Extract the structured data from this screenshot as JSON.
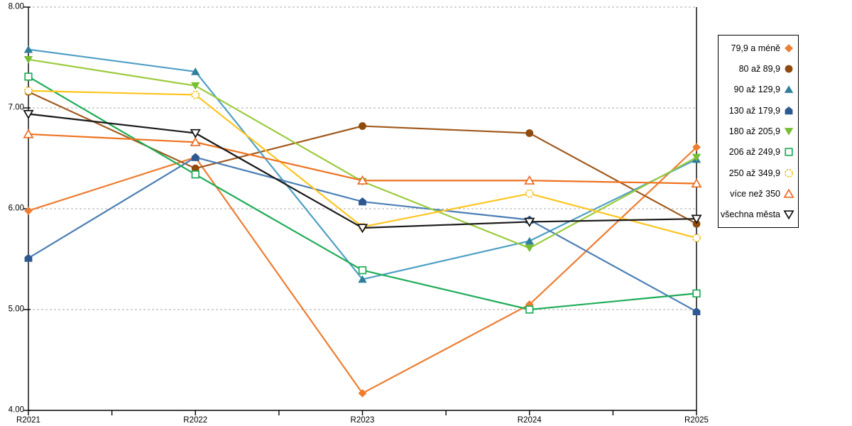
{
  "colors": {
    "background": "#FFFFFF",
    "axis": "#000000",
    "gridline": "#ABABAB",
    "legend_border": "#000000",
    "text": "#000000"
  },
  "chart_data": {
    "type": "line",
    "title": "",
    "xlabel": "",
    "ylabel": "",
    "x_categories": [
      "R2021",
      "R2022",
      "R2023",
      "R2024",
      "R2025"
    ],
    "y_axis": {
      "min": 4.0,
      "max": 8.0,
      "tick_step": 1.0,
      "tick_labels": [
        "8.00",
        "7.00",
        "6.00",
        "5.00",
        "4.00"
      ]
    },
    "grid": "horizontal-dashed",
    "legend_position": "right-box",
    "series": [
      {
        "label": "79,9 a méně",
        "marker": "diamond-filled",
        "marker_color": "#ED7D31",
        "line_color": "#ED7D31",
        "values": [
          5.98,
          6.51,
          4.17,
          5.05,
          6.61
        ]
      },
      {
        "label": "80 až 89,9",
        "marker": "circle-filled",
        "marker_color": "#8F4A0D",
        "line_color": "#A05A1E",
        "values": [
          7.16,
          6.4,
          6.82,
          6.75,
          5.85
        ]
      },
      {
        "label": "90 až 129,9",
        "marker": "triangle-filled",
        "marker_color": "#2E7F9B",
        "line_color": "#4E9FC4",
        "values": [
          7.58,
          7.36,
          5.3,
          5.68,
          6.49
        ]
      },
      {
        "label": "130 až 179,9",
        "marker": "pentagon-filled",
        "marker_color": "#2D5990",
        "line_color": "#4C7FB5",
        "values": [
          5.51,
          6.51,
          6.07,
          5.89,
          4.98
        ]
      },
      {
        "label": "180 až 205,9",
        "marker": "triangle-down-filled",
        "marker_color": "#76BE33",
        "line_color": "#9CCB3E",
        "values": [
          7.48,
          7.22,
          6.27,
          5.61,
          6.51
        ]
      },
      {
        "label": "206 až 249,9",
        "marker": "square-open",
        "marker_color": "#1EAC57",
        "line_color": "#1EAC57",
        "values": [
          7.31,
          6.34,
          5.39,
          5.0,
          5.16
        ]
      },
      {
        "label": "250 až 349,9",
        "marker": "circle-open-dashed",
        "marker_color": "#F0BB12",
        "line_color": "#FFC41E",
        "values": [
          7.17,
          7.13,
          5.82,
          6.15,
          5.71
        ]
      },
      {
        "label": "více než 350",
        "marker": "triangle-open",
        "marker_color": "#ED6B21",
        "line_color": "#EE7220",
        "values": [
          6.74,
          6.66,
          6.28,
          6.28,
          6.25
        ]
      },
      {
        "label": "všechna města",
        "marker": "triangle-down-open",
        "marker_color": "#111111",
        "line_color": "#1A1A1A",
        "values": [
          6.94,
          6.75,
          5.81,
          5.87,
          5.9
        ]
      }
    ]
  }
}
